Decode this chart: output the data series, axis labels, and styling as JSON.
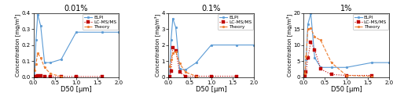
{
  "panels": [
    {
      "title": "0.01%",
      "ylabel": "Concentration [mg/m³]",
      "xlabel": "D50 [μm]",
      "ylim": [
        0,
        0.4
      ],
      "yticks": [
        0,
        0.1,
        0.2,
        0.3,
        0.4
      ],
      "elpi_x": [
        0.03,
        0.06,
        0.1,
        0.17,
        0.26,
        0.4,
        0.65,
        1.0,
        1.6,
        2.0
      ],
      "elpi_y": [
        0.0,
        0.23,
        0.39,
        0.32,
        0.09,
        0.09,
        0.11,
        0.28,
        0.28,
        0.28
      ],
      "lcms_x": [
        0.03,
        0.06,
        0.1,
        0.17,
        0.26,
        0.4,
        0.65,
        1.0,
        1.6
      ],
      "lcms_y": [
        0.003,
        0.005,
        0.01,
        0.01,
        0.005,
        0.003,
        0.003,
        0.003,
        0.003
      ],
      "theory_x": [
        0.03,
        0.06,
        0.1,
        0.17,
        0.26,
        0.4,
        0.65
      ],
      "theory_y": [
        0.04,
        0.08,
        0.15,
        0.12,
        0.06,
        0.02,
        0.004
      ]
    },
    {
      "title": "0.1%",
      "ylabel": "Concentration [mg/m³]",
      "xlabel": "D50 [μm]",
      "ylim": [
        0,
        4
      ],
      "yticks": [
        0,
        1,
        2,
        3,
        4
      ],
      "elpi_x": [
        0.03,
        0.06,
        0.1,
        0.17,
        0.26,
        0.4,
        0.65,
        1.0,
        1.6,
        2.0
      ],
      "elpi_y": [
        0.0,
        2.3,
        3.65,
        3.1,
        0.5,
        0.45,
        0.9,
        2.0,
        2.0,
        2.0
      ],
      "lcms_x": [
        0.03,
        0.06,
        0.1,
        0.17,
        0.26,
        0.4,
        0.65,
        1.0,
        1.6
      ],
      "lcms_y": [
        0.05,
        0.35,
        1.85,
        1.65,
        0.3,
        0.05,
        0.05,
        0.05,
        0.05
      ],
      "theory_x": [
        0.03,
        0.06,
        0.1,
        0.17,
        0.26,
        0.4,
        0.65
      ],
      "theory_y": [
        0.65,
        1.1,
        1.5,
        1.6,
        0.85,
        0.3,
        0.05
      ]
    },
    {
      "title": "1%",
      "ylabel": "Concentration [mg/m³]",
      "xlabel": "D50 [μm]",
      "ylim": [
        0,
        20
      ],
      "yticks": [
        0,
        5,
        10,
        15,
        20
      ],
      "elpi_x": [
        0.03,
        0.06,
        0.1,
        0.17,
        0.26,
        0.4,
        0.65,
        1.0,
        1.6,
        2.0
      ],
      "elpi_y": [
        0.5,
        5.5,
        16.5,
        19.8,
        6.0,
        3.0,
        3.0,
        3.0,
        4.5,
        4.5
      ],
      "lcms_x": [
        0.03,
        0.06,
        0.1,
        0.17,
        0.26,
        0.4,
        0.65,
        1.0,
        1.6
      ],
      "lcms_y": [
        0.3,
        1.5,
        6.0,
        11.0,
        8.5,
        2.5,
        0.8,
        0.5,
        0.5
      ],
      "theory_x": [
        0.03,
        0.06,
        0.1,
        0.17,
        0.26,
        0.4,
        0.65,
        1.0,
        1.6
      ],
      "theory_y": [
        1.0,
        6.5,
        15.0,
        15.2,
        12.5,
        11.5,
        4.5,
        0.5,
        0.2
      ]
    }
  ],
  "elpi_color": "#5B9BD5",
  "lcms_color": "#C00000",
  "theory_color": "#ED7D31",
  "legend_labels": [
    "ELPI",
    "LC-MS/MS",
    "Theory"
  ],
  "xlim": [
    0,
    2
  ],
  "xticks": [
    0,
    0.5,
    1.0,
    1.5,
    2.0
  ]
}
